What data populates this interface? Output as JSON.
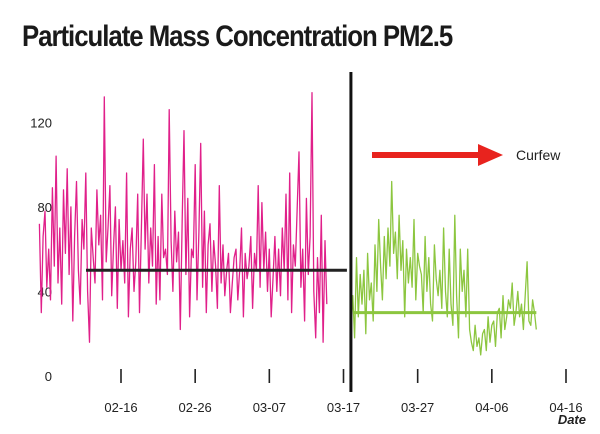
{
  "chart_data": {
    "type": "line",
    "title": "Particulate Mass Concentration PM2.5",
    "xlabel": "Date",
    "ylabel": "",
    "ylim": [
      0,
      140
    ],
    "y_ticks": [
      0,
      40,
      80,
      120
    ],
    "x_ticks": [
      "02-16",
      "02-26",
      "03-07",
      "03-17",
      "03-27",
      "04-06",
      "04-16"
    ],
    "grid": false,
    "divider_date": "03-18",
    "annotation": {
      "text": "Curfew",
      "arrow_color": "#e8231e"
    },
    "series": [
      {
        "color": "#e0208a",
        "start_date": "02-05",
        "step_days": 0.25,
        "mean": 50,
        "values": [
          72,
          30,
          66,
          78,
          42,
          60,
          36,
          89,
          52,
          104,
          44,
          70,
          34,
          88,
          58,
          98,
          48,
          80,
          26,
          66,
          92,
          50,
          34,
          74,
          60,
          96,
          40,
          16,
          70,
          56,
          44,
          88,
          62,
          76,
          36,
          132,
          54,
          70,
          90,
          38,
          62,
          80,
          32,
          74,
          50,
          64,
          44,
          96,
          28,
          60,
          70,
          40,
          54,
          86,
          30,
          70,
          112,
          60,
          86,
          44,
          70,
          52,
          100,
          34,
          66,
          36,
          86,
          56,
          60,
          48,
          126,
          64,
          40,
          78,
          54,
          68,
          22,
          74,
          116,
          48,
          84,
          28,
          60,
          56,
          100,
          36,
          68,
          110,
          42,
          78,
          30,
          62,
          72,
          40,
          64,
          52,
          32,
          90,
          44,
          62,
          38,
          50,
          58,
          30,
          44,
          56,
          60,
          36,
          50,
          70,
          28,
          58,
          46,
          52,
          66,
          32,
          58,
          50,
          90,
          42,
          82,
          50,
          68,
          40,
          60,
          28,
          46,
          66,
          40,
          60,
          38,
          70,
          50,
          86,
          36,
          96,
          30,
          62,
          52,
          78,
          106,
          42,
          60,
          26,
          84,
          48,
          66,
          134,
          40,
          18,
          56,
          30,
          76,
          16,
          64,
          34
        ]
      },
      {
        "color": "#8cc63f",
        "start_date": "03-18",
        "step_days": 0.25,
        "mean": 30,
        "values": [
          22,
          38,
          18,
          56,
          28,
          48,
          34,
          50,
          20,
          58,
          36,
          44,
          26,
          62,
          40,
          74,
          52,
          36,
          66,
          46,
          70,
          52,
          92,
          58,
          68,
          46,
          76,
          50,
          64,
          28,
          60,
          44,
          56,
          42,
          74,
          36,
          58,
          52,
          48,
          30,
          66,
          40,
          56,
          34,
          26,
          62,
          46,
          38,
          50,
          32,
          70,
          40,
          28,
          60,
          34,
          24,
          76,
          38,
          18,
          60,
          40,
          50,
          28,
          60,
          22,
          16,
          12,
          24,
          14,
          18,
          10,
          20,
          22,
          12,
          28,
          16,
          24,
          26,
          14,
          30,
          32,
          18,
          38,
          22,
          28,
          36,
          32,
          44,
          24,
          30,
          40,
          28,
          34,
          22,
          38,
          54,
          26,
          24,
          36,
          30,
          22
        ]
      }
    ]
  }
}
